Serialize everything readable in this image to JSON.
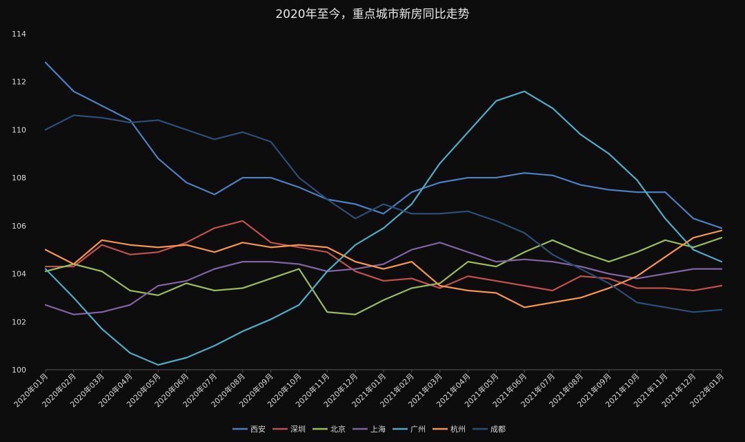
{
  "chart_data": {
    "type": "line",
    "title": "2020年至今，重点城市新房同比走势",
    "xlabel": "",
    "ylabel": "",
    "ylim": [
      100,
      114
    ],
    "yticks": [
      100,
      102,
      104,
      106,
      108,
      110,
      112,
      114
    ],
    "grid": false,
    "legend_position": "bottom",
    "categories": [
      "2020年01月",
      "2020年02月",
      "2020年03月",
      "2020年04月",
      "2020年05月",
      "2020年06月",
      "2020年07月",
      "2020年08月",
      "2020年09月",
      "2020年10月",
      "2020年11月",
      "2020年12月",
      "2021年01月",
      "2021年02月",
      "2021年03月",
      "2021年04月",
      "2021年05月",
      "2021年06月",
      "2021年07月",
      "2021年08月",
      "2021年09月",
      "2021年10月",
      "2021年11月",
      "2021年12月",
      "2022年01月"
    ],
    "series": [
      {
        "name": "西安",
        "color": "#4a7fc1",
        "values": [
          112.8,
          111.6,
          111.0,
          110.4,
          108.8,
          107.8,
          107.3,
          108.0,
          108.0,
          107.6,
          107.1,
          106.9,
          106.5,
          107.4,
          107.8,
          108.0,
          108.0,
          108.2,
          108.1,
          107.7,
          107.5,
          107.4,
          107.4,
          106.3,
          105.9
        ]
      },
      {
        "name": "深圳",
        "color": "#c0504d",
        "values": [
          104.3,
          104.3,
          105.2,
          104.8,
          104.9,
          105.3,
          105.9,
          106.2,
          105.3,
          105.1,
          104.9,
          104.1,
          103.7,
          103.8,
          103.4,
          103.9,
          103.7,
          103.5,
          103.3,
          103.9,
          103.8,
          103.4,
          103.4,
          103.3,
          103.5
        ]
      },
      {
        "name": "北京",
        "color": "#9bbb59",
        "values": [
          104.1,
          104.4,
          104.1,
          103.3,
          103.1,
          103.6,
          103.3,
          103.4,
          103.8,
          104.2,
          102.4,
          102.3,
          102.9,
          103.4,
          103.6,
          104.5,
          104.3,
          104.9,
          105.4,
          104.9,
          104.5,
          104.9,
          105.4,
          105.1,
          105.5
        ]
      },
      {
        "name": "上海",
        "color": "#8064a2",
        "values": [
          102.7,
          102.3,
          102.4,
          102.7,
          103.5,
          103.7,
          104.2,
          104.5,
          104.5,
          104.4,
          104.1,
          104.2,
          104.4,
          105.0,
          105.3,
          104.9,
          104.5,
          104.6,
          104.5,
          104.3,
          104.0,
          103.8,
          104.0,
          104.2,
          104.2
        ]
      },
      {
        "name": "广州",
        "color": "#4bacc6",
        "values": [
          104.2,
          103.0,
          101.7,
          100.7,
          100.2,
          100.5,
          101.0,
          101.6,
          102.1,
          102.7,
          104.1,
          105.2,
          105.9,
          106.9,
          108.6,
          109.9,
          111.2,
          111.6,
          110.9,
          109.8,
          109.0,
          107.9,
          106.3,
          105.0,
          104.5
        ]
      },
      {
        "name": "杭州",
        "color": "#f79646",
        "values": [
          105.0,
          104.4,
          105.4,
          105.2,
          105.1,
          105.2,
          104.9,
          105.3,
          105.1,
          105.2,
          105.1,
          104.5,
          104.2,
          104.5,
          103.5,
          103.3,
          103.2,
          102.6,
          102.8,
          103.0,
          103.4,
          103.9,
          104.7,
          105.5,
          105.8
        ]
      },
      {
        "name": "成都",
        "color": "#2c4d75",
        "values": [
          110.0,
          110.6,
          110.5,
          110.3,
          110.4,
          110.0,
          109.6,
          109.9,
          109.5,
          108.0,
          107.1,
          106.3,
          106.9,
          106.5,
          106.5,
          106.6,
          106.2,
          105.7,
          104.8,
          104.2,
          103.6,
          102.8,
          102.6,
          102.4,
          102.5
        ]
      }
    ]
  }
}
